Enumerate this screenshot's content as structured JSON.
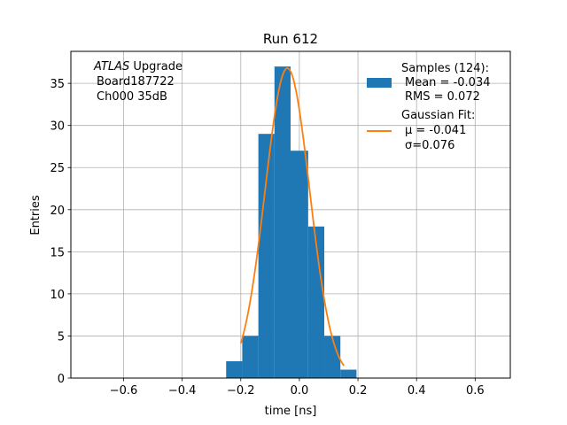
{
  "chart_data": {
    "type": "bar",
    "title": "Run 612",
    "xlabel": "time [ns]",
    "ylabel": "Entries",
    "xlim": [
      -0.78,
      0.72
    ],
    "ylim": [
      0,
      38.8
    ],
    "grid": true,
    "x_ticks": [
      -0.6,
      -0.4,
      -0.2,
      0.0,
      0.2,
      0.4,
      0.6
    ],
    "x_tick_labels": [
      "−0.6",
      "−0.4",
      "−0.2",
      "0.0",
      "0.2",
      "0.4",
      "0.6"
    ],
    "y_ticks": [
      0,
      5,
      10,
      15,
      20,
      25,
      30,
      35
    ],
    "y_tick_labels": [
      "0",
      "5",
      "10",
      "15",
      "20",
      "25",
      "30",
      "35"
    ],
    "annotation": {
      "line1_italic": "ATLAS",
      "line1_rest": " Upgrade",
      "line2": "Board187722",
      "line3": "Ch000 35dB"
    },
    "series": [
      {
        "name": "Samples (124):",
        "legend_lines": [
          "Samples (124):",
          "Mean = -0.034",
          "RMS = 0.072"
        ],
        "kind": "histogram",
        "color": "#1f77b4",
        "bins": [
          {
            "left": -0.25,
            "right": -0.195,
            "count": 2
          },
          {
            "left": -0.195,
            "right": -0.14,
            "count": 5
          },
          {
            "left": -0.14,
            "right": -0.085,
            "count": 29
          },
          {
            "left": -0.085,
            "right": -0.03,
            "count": 37
          },
          {
            "left": -0.03,
            "right": 0.03,
            "count": 27
          },
          {
            "left": 0.03,
            "right": 0.085,
            "count": 18
          },
          {
            "left": 0.085,
            "right": 0.14,
            "count": 5
          },
          {
            "left": 0.14,
            "right": 0.195,
            "count": 1
          }
        ]
      },
      {
        "name": "Gaussian Fit:",
        "legend_lines": [
          "Gaussian Fit:",
          "μ = -0.041",
          "σ=0.076"
        ],
        "kind": "line",
        "color": "#ff7f0e",
        "fit": {
          "amplitude": 36.8,
          "mu": -0.041,
          "sigma": 0.076,
          "x_range": [
            -0.2,
            0.152
          ]
        }
      }
    ]
  }
}
